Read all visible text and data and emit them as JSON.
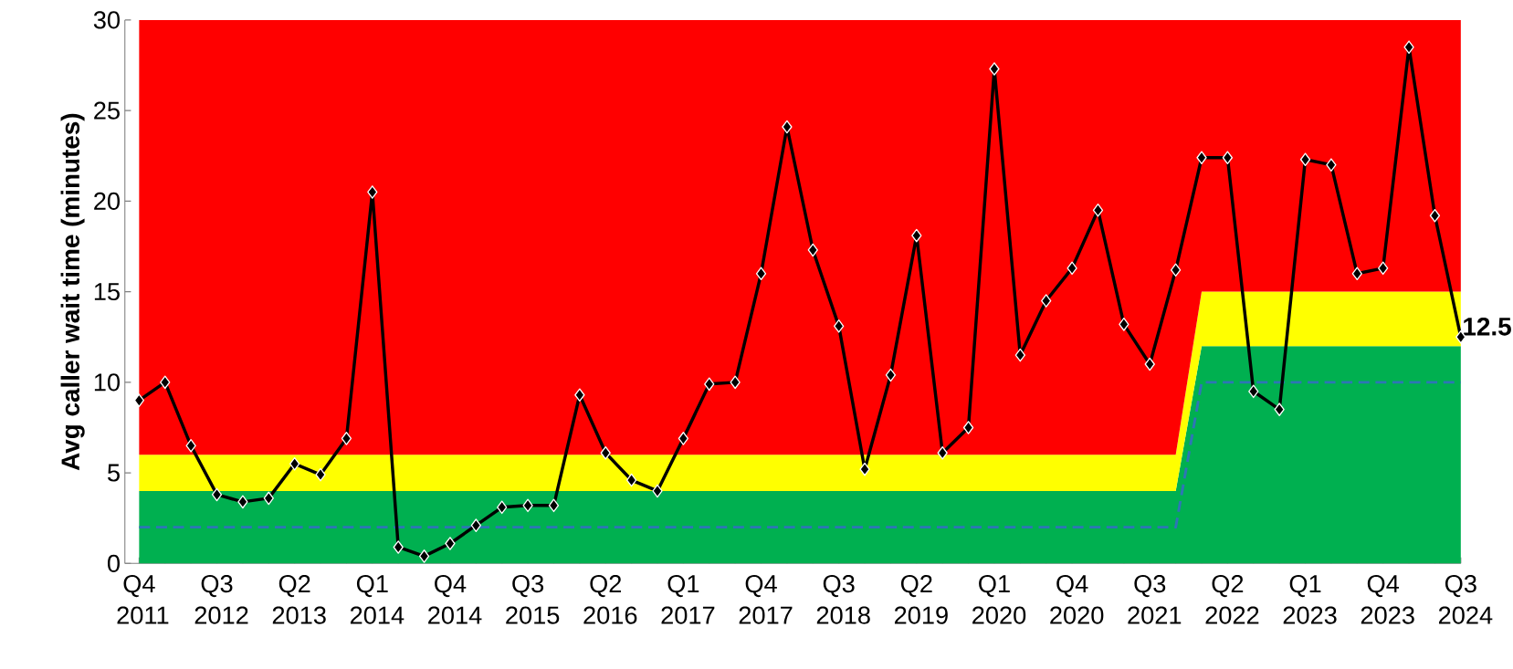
{
  "chart_data": {
    "type": "area",
    "ylabel": "Avg caller wait time (minutes)",
    "categories": [
      "Q4 2011",
      null,
      null,
      "Q3 2012",
      null,
      null,
      "Q2 2013",
      null,
      null,
      "Q1 2014",
      null,
      null,
      "Q4 2014",
      null,
      null,
      "Q3 2015",
      null,
      null,
      "Q2 2016",
      null,
      null,
      "Q1 2017",
      null,
      null,
      "Q4 2017",
      null,
      null,
      "Q3 2018",
      null,
      null,
      "Q2 2019",
      null,
      null,
      "Q1 2020",
      null,
      null,
      "Q4 2020",
      null,
      null,
      "Q3 2021",
      null,
      null,
      "Q2 2022",
      null,
      null,
      "Q1 2023",
      null,
      null,
      "Q4 2023",
      null,
      null,
      "Q3 2024"
    ],
    "ylim": [
      0,
      30
    ],
    "yticks": [
      0,
      5,
      10,
      15,
      20,
      25,
      30
    ],
    "stacked": true,
    "series": [
      {
        "color": "#00b050",
        "values": [
          4,
          4,
          4,
          4,
          4,
          4,
          4,
          4,
          4,
          4,
          4,
          4,
          4,
          4,
          4,
          4,
          4,
          4,
          4,
          4,
          4,
          4,
          4,
          4,
          4,
          4,
          4,
          4,
          4,
          4,
          4,
          4,
          4,
          4,
          4,
          4,
          4,
          4,
          4,
          4,
          4,
          12,
          12,
          12,
          12,
          12,
          12,
          12,
          12,
          12,
          12,
          12
        ]
      },
      {
        "color": "#ffff00",
        "values": [
          2,
          2,
          2,
          2,
          2,
          2,
          2,
          2,
          2,
          2,
          2,
          2,
          2,
          2,
          2,
          2,
          2,
          2,
          2,
          2,
          2,
          2,
          2,
          2,
          2,
          2,
          2,
          2,
          2,
          2,
          2,
          2,
          2,
          2,
          2,
          2,
          2,
          2,
          2,
          2,
          2,
          3,
          3,
          3,
          3,
          3,
          3,
          3,
          3,
          3,
          3,
          3
        ]
      },
      {
        "color": "#ff0000",
        "values": [
          24,
          24,
          24,
          24,
          24,
          24,
          24,
          24,
          24,
          24,
          24,
          24,
          24,
          24,
          24,
          24,
          24,
          24,
          24,
          24,
          24,
          24,
          24,
          24,
          24,
          24,
          24,
          24,
          24,
          24,
          24,
          24,
          24,
          24,
          24,
          24,
          24,
          24,
          24,
          24,
          24,
          15,
          15,
          15,
          15,
          15,
          15,
          15,
          15,
          15,
          15,
          15
        ]
      },
      {
        "type": "line",
        "color": "#2e75b6",
        "line_style": "dashed",
        "marker": "none",
        "values": [
          2,
          2,
          2,
          2,
          2,
          2,
          2,
          2,
          2,
          2,
          2,
          2,
          2,
          2,
          2,
          2,
          2,
          2,
          2,
          2,
          2,
          2,
          2,
          2,
          2,
          2,
          2,
          2,
          2,
          2,
          2,
          2,
          2,
          2,
          2,
          2,
          2,
          2,
          2,
          2,
          2,
          10,
          10,
          10,
          10,
          10,
          10,
          10,
          10,
          10,
          10,
          10
        ]
      },
      {
        "type": "line",
        "color": "#000000",
        "line_style": "solid",
        "marker": "diamond",
        "values": [
          9,
          10,
          6.5,
          3.8,
          3.4,
          3.6,
          5.5,
          4.9,
          6.9,
          20.5,
          0.9,
          0.4,
          1.1,
          2.1,
          3.1,
          3.2,
          3.2,
          9.3,
          6.1,
          4.6,
          4.0,
          6.9,
          9.9,
          10.0,
          16.0,
          24.1,
          17.3,
          13.1,
          5.2,
          10.4,
          18.1,
          6.1,
          7.5,
          27.3,
          11.5,
          14.5,
          16.3,
          19.5,
          13.2,
          11.0,
          16.2,
          22.4,
          22.4,
          9.5,
          8.5,
          22.3,
          22.0,
          16.0,
          16.3,
          28.5,
          19.2,
          12.5
        ],
        "value_labels": [
          null,
          null,
          null,
          null,
          null,
          null,
          null,
          null,
          null,
          null,
          null,
          null,
          null,
          null,
          null,
          null,
          null,
          null,
          null,
          null,
          null,
          null,
          null,
          null,
          null,
          null,
          null,
          null,
          null,
          null,
          null,
          null,
          null,
          null,
          null,
          null,
          null,
          null,
          null,
          null,
          null,
          null,
          null,
          null,
          null,
          null,
          null,
          null,
          null,
          null,
          null,
          "12.5"
        ]
      }
    ]
  }
}
